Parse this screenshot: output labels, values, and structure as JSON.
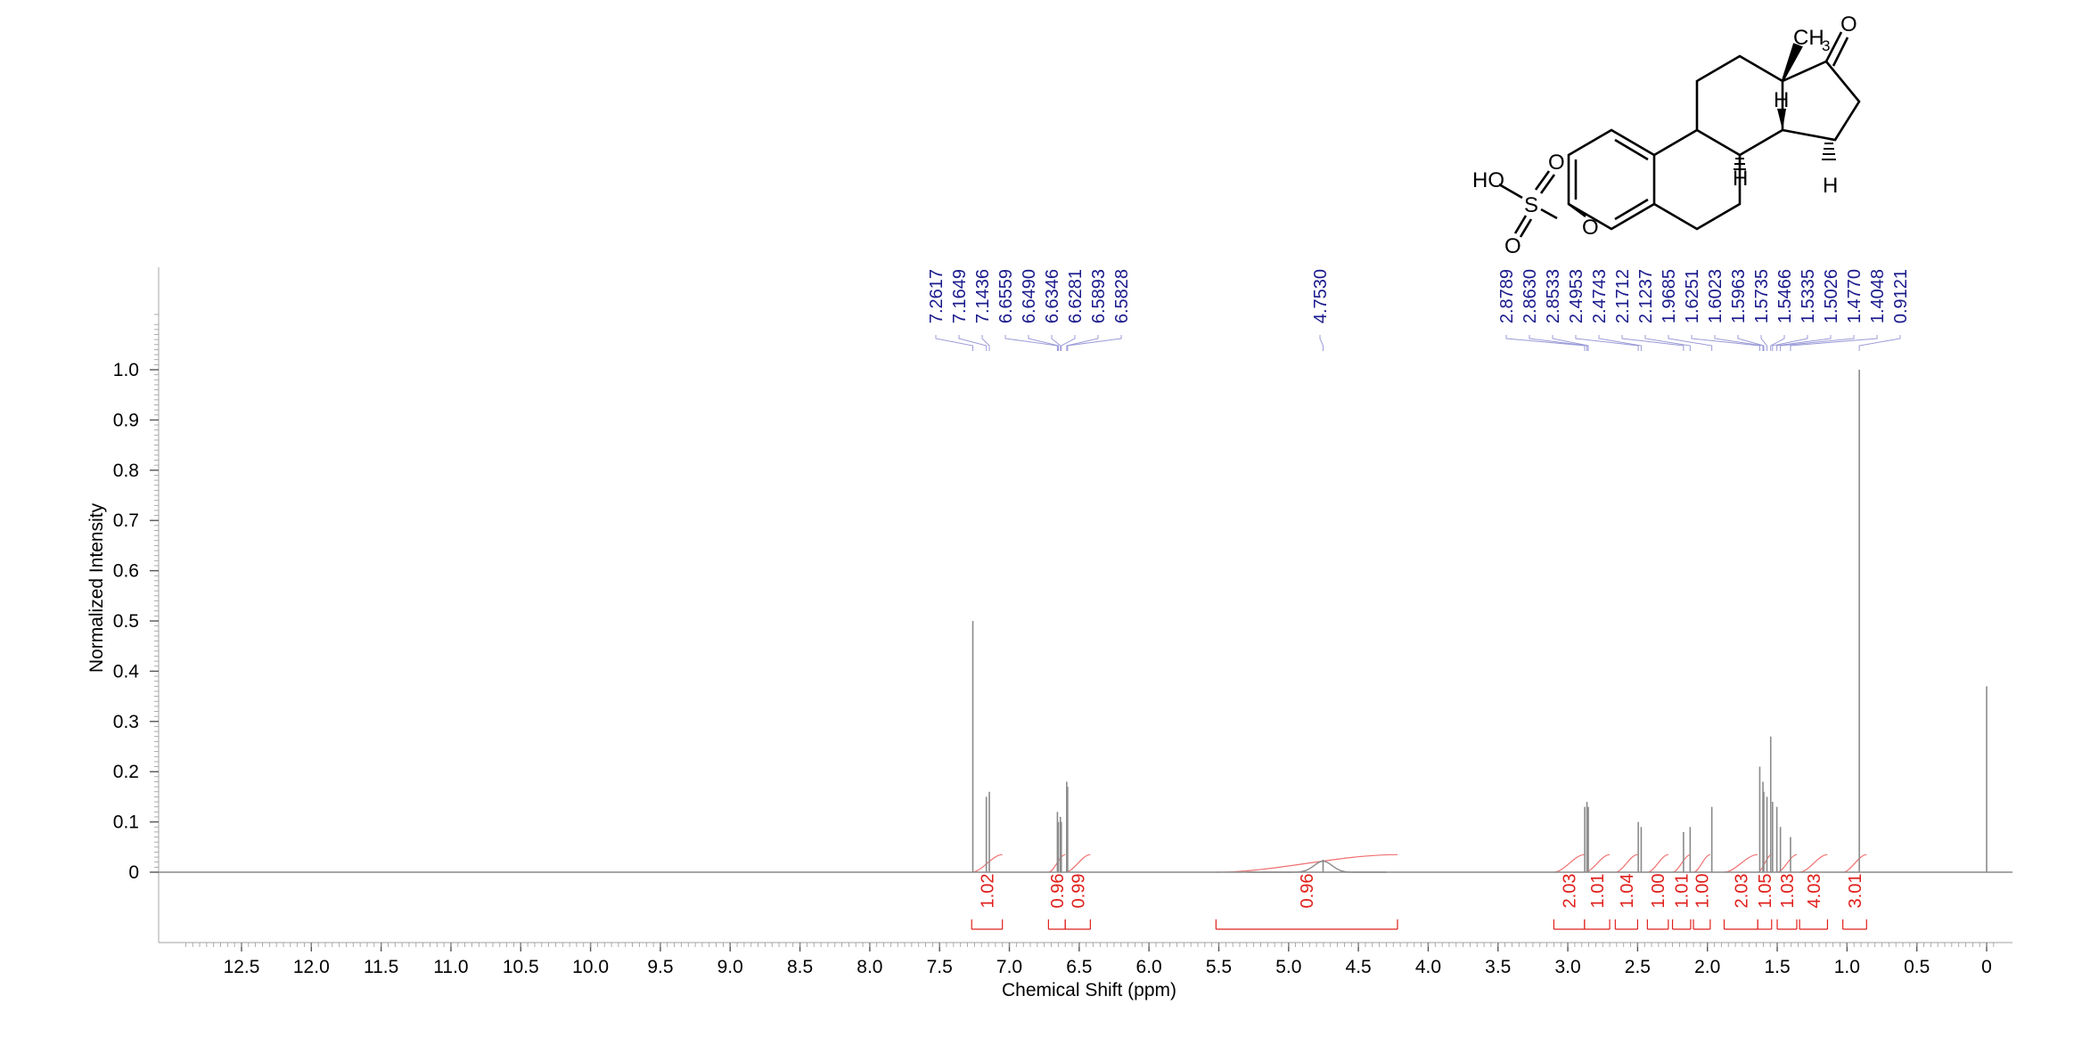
{
  "chart_data": {
    "type": "line",
    "title": "",
    "xlabel": "Chemical Shift (ppm)",
    "ylabel": "Normalized Intensity",
    "xlim": [
      13.0,
      -0.1
    ],
    "ylim": [
      -0.15,
      1.2
    ],
    "x_ticks": [
      "12.5",
      "12.0",
      "11.5",
      "11.0",
      "10.5",
      "10.0",
      "9.5",
      "9.0",
      "8.5",
      "8.0",
      "7.5",
      "7.0",
      "6.5",
      "6.0",
      "5.5",
      "5.0",
      "4.5",
      "4.0",
      "3.5",
      "3.0",
      "2.5",
      "2.0",
      "1.5",
      "1.0",
      "0.5",
      "0"
    ],
    "y_ticks": [
      "0",
      "0.1",
      "0.2",
      "0.3",
      "0.4",
      "0.5",
      "0.6",
      "0.7",
      "0.8",
      "0.9",
      "1.0"
    ],
    "series": [
      {
        "peaks": [
          {
            "x": 7.2617,
            "y": 0.5
          },
          {
            "x": 7.1649,
            "y": 0.15
          },
          {
            "x": 7.1436,
            "y": 0.16
          },
          {
            "x": 6.6559,
            "y": 0.12
          },
          {
            "x": 6.649,
            "y": 0.1
          },
          {
            "x": 6.6346,
            "y": 0.11
          },
          {
            "x": 6.6281,
            "y": 0.1
          },
          {
            "x": 6.5893,
            "y": 0.18
          },
          {
            "x": 6.5828,
            "y": 0.17
          },
          {
            "x": 4.753,
            "y": 0.025
          },
          {
            "x": 2.8789,
            "y": 0.13
          },
          {
            "x": 2.863,
            "y": 0.14
          },
          {
            "x": 2.8533,
            "y": 0.13
          },
          {
            "x": 2.4953,
            "y": 0.1
          },
          {
            "x": 2.4743,
            "y": 0.09
          },
          {
            "x": 2.1712,
            "y": 0.08
          },
          {
            "x": 2.1237,
            "y": 0.09
          },
          {
            "x": 1.9685,
            "y": 0.13
          },
          {
            "x": 1.6251,
            "y": 0.21
          },
          {
            "x": 1.6023,
            "y": 0.18
          },
          {
            "x": 1.5963,
            "y": 0.16
          },
          {
            "x": 1.5735,
            "y": 0.15
          },
          {
            "x": 1.5466,
            "y": 0.27
          },
          {
            "x": 1.5335,
            "y": 0.14
          },
          {
            "x": 1.5026,
            "y": 0.13
          },
          {
            "x": 1.477,
            "y": 0.09
          },
          {
            "x": 1.4048,
            "y": 0.07
          },
          {
            "x": 0.9121,
            "y": 1.0
          },
          {
            "x": 0.0,
            "y": 0.37
          }
        ]
      }
    ],
    "peak_labels": [
      {
        "text": "7.2617",
        "x": 7.2617
      },
      {
        "text": "7.1649",
        "x": 7.1649
      },
      {
        "text": "7.1436",
        "x": 7.1436
      },
      {
        "text": "6.6559",
        "x": 6.6559
      },
      {
        "text": "6.6490",
        "x": 6.649
      },
      {
        "text": "6.6346",
        "x": 6.6346
      },
      {
        "text": "6.6281",
        "x": 6.6281
      },
      {
        "text": "6.5893",
        "x": 6.5893
      },
      {
        "text": "6.5828",
        "x": 6.5828
      },
      {
        "text": "4.7530",
        "x": 4.753
      },
      {
        "text": "2.8789",
        "x": 2.8789
      },
      {
        "text": "2.8630",
        "x": 2.863
      },
      {
        "text": "2.8533",
        "x": 2.8533
      },
      {
        "text": "2.4953",
        "x": 2.4953
      },
      {
        "text": "2.4743",
        "x": 2.4743
      },
      {
        "text": "2.1712",
        "x": 2.1712
      },
      {
        "text": "2.1237",
        "x": 2.1237
      },
      {
        "text": "1.9685",
        "x": 1.9685
      },
      {
        "text": "1.6251",
        "x": 1.6251
      },
      {
        "text": "1.6023",
        "x": 1.6023
      },
      {
        "text": "1.5963",
        "x": 1.5963
      },
      {
        "text": "1.5735",
        "x": 1.5735
      },
      {
        "text": "1.5466",
        "x": 1.5466
      },
      {
        "text": "1.5335",
        "x": 1.5335
      },
      {
        "text": "1.5026",
        "x": 1.5026
      },
      {
        "text": "1.4770",
        "x": 1.477
      },
      {
        "text": "1.4048",
        "x": 1.4048
      },
      {
        "text": "0.9121",
        "x": 0.9121
      }
    ],
    "integrals": [
      {
        "label": "1.02",
        "from": 7.27,
        "to": 7.05
      },
      {
        "label": "0.96",
        "from": 6.72,
        "to": 6.6
      },
      {
        "label": "0.99",
        "from": 6.6,
        "to": 6.42
      },
      {
        "label": "0.96",
        "from": 5.52,
        "to": 4.22
      },
      {
        "label": "2.03",
        "from": 3.1,
        "to": 2.88
      },
      {
        "label": "1.01",
        "from": 2.88,
        "to": 2.7
      },
      {
        "label": "1.04",
        "from": 2.66,
        "to": 2.5
      },
      {
        "label": "1.00",
        "from": 2.43,
        "to": 2.28
      },
      {
        "label": "1.01",
        "from": 2.25,
        "to": 2.12
      },
      {
        "label": "1.00",
        "from": 2.1,
        "to": 1.98
      },
      {
        "label": "2.03",
        "from": 1.88,
        "to": 1.64
      },
      {
        "label": "1.05",
        "from": 1.64,
        "to": 1.54
      },
      {
        "label": "1.03",
        "from": 1.5,
        "to": 1.36
      },
      {
        "label": "4.03",
        "from": 1.34,
        "to": 1.14
      },
      {
        "label": "3.01",
        "from": 1.03,
        "to": 0.86
      }
    ],
    "grid": false,
    "colors": {
      "spectrum": "#8a8a8a",
      "peak_label": "#1a1a8c",
      "peak_leader": "#9a9ad8",
      "integral": "#e0201c",
      "integral_curve": "#f07070",
      "axis": "#000000"
    }
  },
  "structure": {
    "labels": {
      "ho": "HO",
      "s": "S",
      "o_top": "O",
      "o_bottom": "O",
      "o_ether": "O",
      "o_ketone": "O",
      "ch3": "CH",
      "ch3_sub": "3",
      "h1": "H",
      "h2": "H",
      "h3": "H"
    }
  }
}
